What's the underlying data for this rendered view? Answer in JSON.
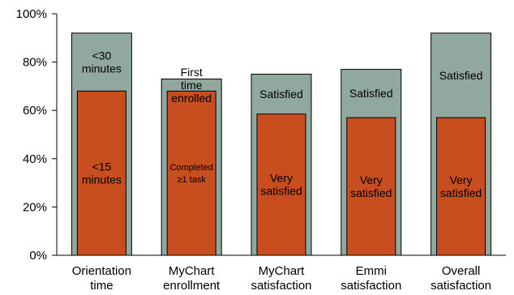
{
  "chart_data": {
    "type": "bar",
    "title": "",
    "xlabel": "",
    "ylabel": "",
    "ylim": [
      0,
      100
    ],
    "yticks": [
      "0%",
      "20%",
      "40%",
      "60%",
      "80%",
      "100%"
    ],
    "colors": {
      "outer": "#91A89F",
      "inner": "#C84E20"
    },
    "categories": [
      [
        "Orientation",
        "time"
      ],
      [
        "MyChart",
        "enrollment"
      ],
      [
        "MyChart",
        "satisfaction"
      ],
      [
        "Emmi",
        "satisfaction"
      ],
      [
        "Overall",
        "satisfaction"
      ]
    ],
    "series": [
      {
        "name": "outer",
        "values": [
          92,
          73,
          75,
          77,
          92
        ]
      },
      {
        "name": "inner",
        "values": [
          68,
          68,
          58.5,
          57,
          57
        ]
      }
    ],
    "segment_labels": {
      "outer": [
        [
          "<30",
          "minutes"
        ],
        [
          "First",
          "time",
          "enrolled"
        ],
        [
          "Satisfied"
        ],
        [
          "Satisfied"
        ],
        [
          "Satisfied"
        ]
      ],
      "inner": [
        [
          "<15",
          "minutes"
        ],
        [
          "Completed",
          "≥1 task"
        ],
        [
          "Very",
          "satisfied"
        ],
        [
          "Very",
          "satisfied"
        ],
        [
          "Very",
          "satisfied"
        ]
      ]
    }
  }
}
